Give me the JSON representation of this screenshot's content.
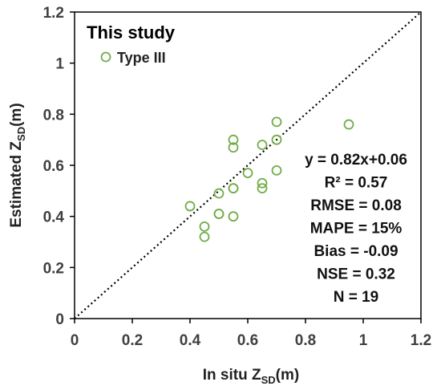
{
  "chart_data": {
    "type": "scatter",
    "xlabel": "In situ Z",
    "xlabel_sub": "SD",
    "xlabel_unit": "(m)",
    "ylabel": "Estimated Z",
    "ylabel_sub": "SD",
    "ylabel_unit": "(m)",
    "xlim": [
      0,
      1.2
    ],
    "ylim": [
      0,
      1.2
    ],
    "xticks": [
      "0",
      "0.2",
      "0.4",
      "0.6",
      "0.8",
      "1",
      "1.2"
    ],
    "yticks": [
      "0",
      "0.2",
      "0.4",
      "0.6",
      "0.8",
      "1",
      "1.2"
    ],
    "grid": false,
    "reference_line": "1:1 dotted",
    "legend": {
      "title": "This study",
      "placement": "top-left"
    },
    "series": [
      {
        "name": "Type III",
        "color": "#70ad47",
        "marker": "open-circle",
        "points": [
          [
            0.4,
            0.44
          ],
          [
            0.45,
            0.36
          ],
          [
            0.45,
            0.32
          ],
          [
            0.5,
            0.49
          ],
          [
            0.5,
            0.41
          ],
          [
            0.5,
            0.41
          ],
          [
            0.55,
            0.7
          ],
          [
            0.55,
            0.67
          ],
          [
            0.55,
            0.51
          ],
          [
            0.55,
            0.51
          ],
          [
            0.55,
            0.4
          ],
          [
            0.6,
            0.57
          ],
          [
            0.65,
            0.68
          ],
          [
            0.65,
            0.53
          ],
          [
            0.65,
            0.51
          ],
          [
            0.7,
            0.77
          ],
          [
            0.7,
            0.7
          ],
          [
            0.7,
            0.58
          ],
          [
            0.95,
            0.76
          ]
        ]
      }
    ],
    "stats": [
      "y = 0.82x+0.06",
      "R² = 0.57",
      "RMSE = 0.08",
      "MAPE = 15%",
      "Bias = -0.09",
      "NSE = 0.32",
      "N = 19"
    ]
  }
}
